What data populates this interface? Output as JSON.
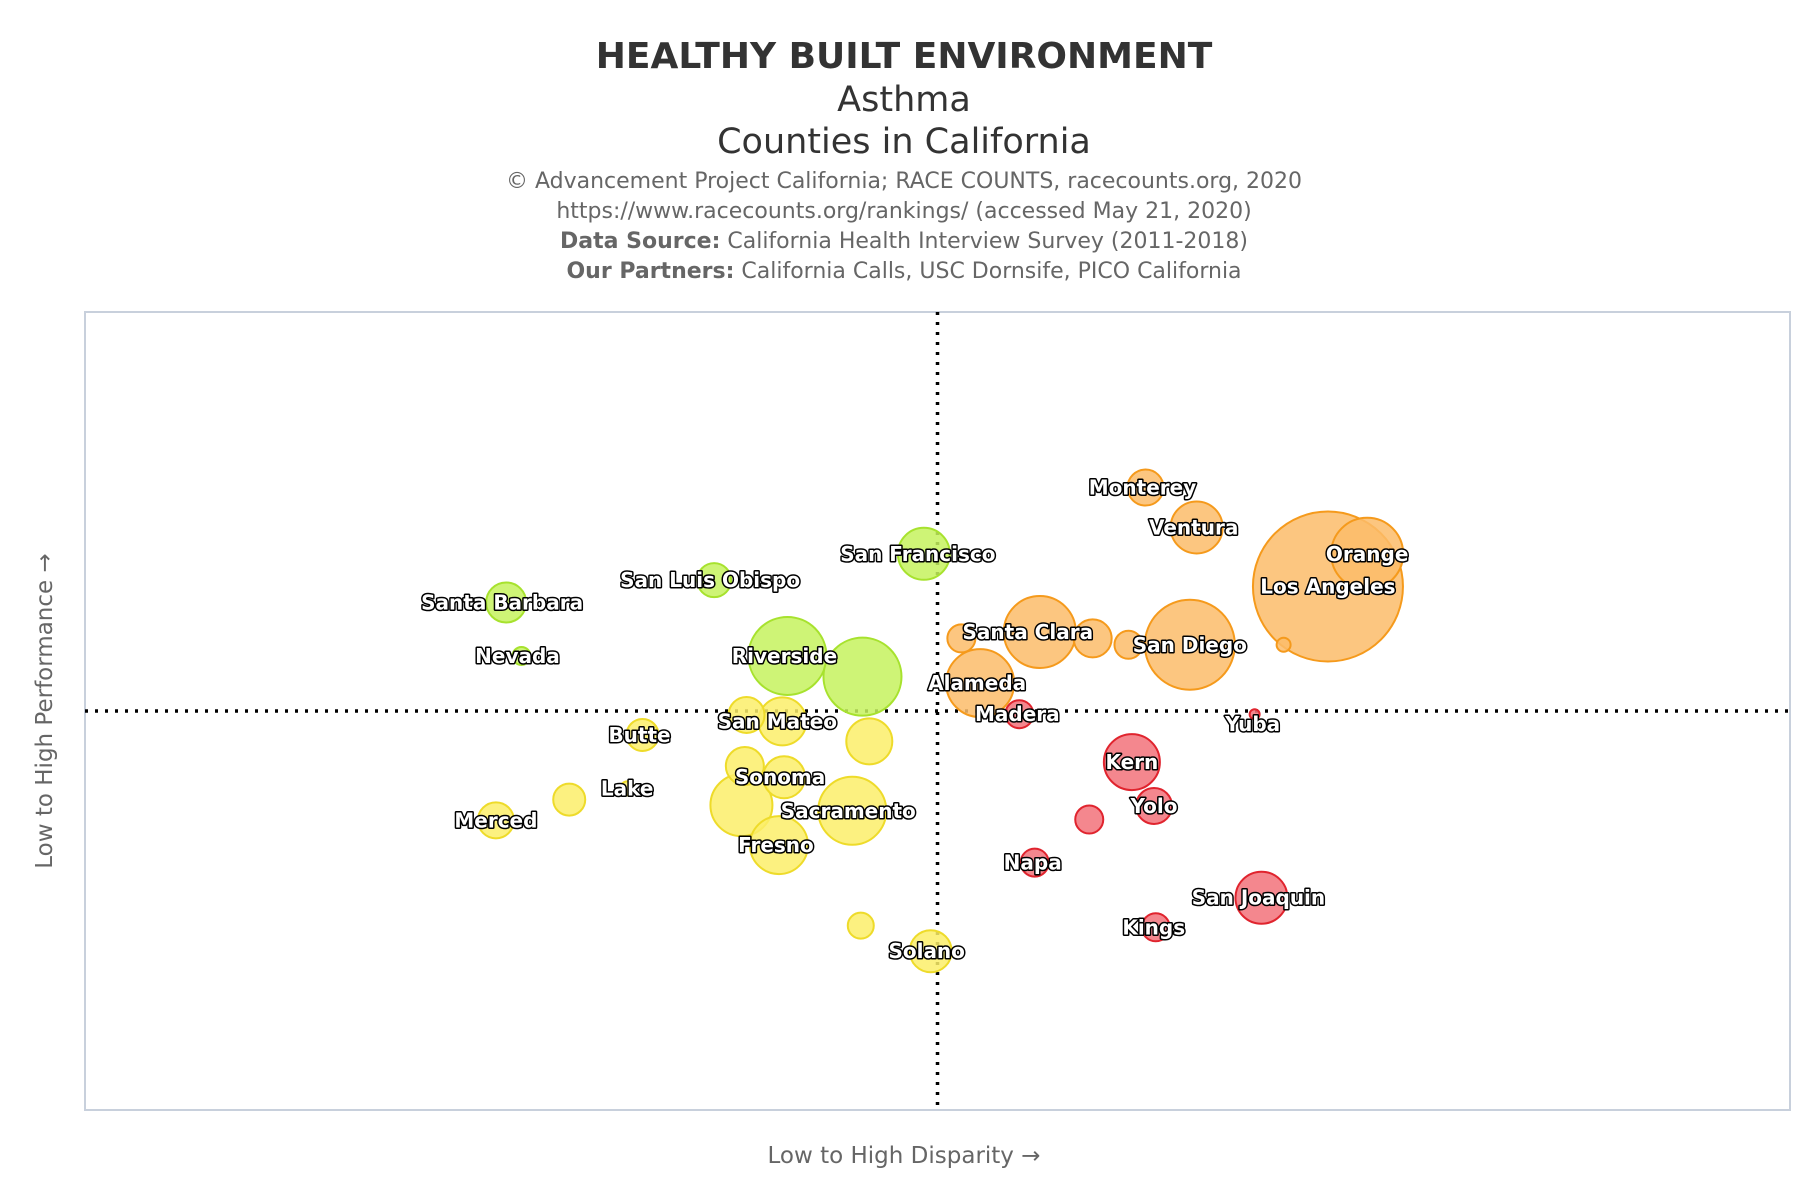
{
  "titles": {
    "main": "HEALTHY BUILT ENVIRONMENT",
    "sub1": "Asthma",
    "sub2": "Counties in California"
  },
  "credits": {
    "line1": "© Advancement Project California; RACE COUNTS, racecounts.org, 2020",
    "line2": "https://www.racecounts.org/rankings/ (accessed May 21, 2020)",
    "line3_bold": "Data Source:",
    "line3_text": " California Health Interview Survey (2011-2018)",
    "line4_bold": "Our Partners:",
    "line4_text": " California Calls, USC Dornsife, PICO California"
  },
  "colors": {
    "green_fill": "#c6f25e",
    "green_stroke": "#a7e22e",
    "orange_fill": "#fbbc6a",
    "orange_stroke": "#f59a1c",
    "yellow_fill": "#fbee6a",
    "yellow_stroke": "#eedb2a",
    "red_fill": "#f2727a",
    "red_stroke": "#e0242e",
    "plot_border": "#c8d0dc",
    "quadrant_line": "#000000"
  },
  "chart_data": {
    "type": "scatter",
    "xlabel": "Low to High Disparity →",
    "ylabel": "Low to High Performance →",
    "xlim": [
      0,
      100
    ],
    "ylim": [
      0,
      100
    ],
    "grid": false,
    "quadrant_lines": {
      "x": 50,
      "y": 50
    },
    "points": [
      {
        "name": "Monterey",
        "x": 62.2,
        "y": 78.0,
        "r": 18,
        "group": "orange",
        "label_dx": -3,
        "label_dy": 0
      },
      {
        "name": "Ventura",
        "x": 65.2,
        "y": 73.0,
        "r": 26,
        "group": "orange",
        "label_dx": -3,
        "label_dy": 0
      },
      {
        "name": "Orange",
        "x": 75.2,
        "y": 69.7,
        "r": 36,
        "group": "orange",
        "label_dx": 0,
        "label_dy": 0
      },
      {
        "name": "Los Angeles",
        "x": 72.9,
        "y": 65.6,
        "r": 75,
        "group": "orange",
        "label_dx": 0,
        "label_dy": 0
      },
      {
        "name": "",
        "x": 70.3,
        "y": 58.3,
        "r": 7,
        "group": "orange",
        "label_dx": 0,
        "label_dy": 0
      },
      {
        "name": "San Diego",
        "x": 64.8,
        "y": 58.3,
        "r": 45,
        "group": "orange",
        "label_dx": 0,
        "label_dy": 0
      },
      {
        "name": "",
        "x": 61.2,
        "y": 58.3,
        "r": 14,
        "group": "orange",
        "label_dx": 0,
        "label_dy": 0
      },
      {
        "name": "",
        "x": 59.1,
        "y": 59.1,
        "r": 19,
        "group": "orange",
        "label_dx": 0,
        "label_dy": 0
      },
      {
        "name": "Santa Clara",
        "x": 56.0,
        "y": 59.9,
        "r": 36,
        "group": "orange",
        "label_dx": -12,
        "label_dy": 0
      },
      {
        "name": "",
        "x": 51.4,
        "y": 59.1,
        "r": 14,
        "group": "orange",
        "label_dx": 0,
        "label_dy": 0
      },
      {
        "name": "Alameda",
        "x": 52.5,
        "y": 53.5,
        "r": 34,
        "group": "orange",
        "label_dx": -3,
        "label_dy": 0
      },
      {
        "name": "San Francisco",
        "x": 49.2,
        "y": 69.7,
        "r": 26,
        "group": "green",
        "label_dx": -6,
        "label_dy": 0
      },
      {
        "name": "San Luis Obispo",
        "x": 36.9,
        "y": 66.4,
        "r": 17,
        "group": "green",
        "label_dx": -4,
        "label_dy": 0
      },
      {
        "name": "Santa Barbara",
        "x": 24.7,
        "y": 63.6,
        "r": 20,
        "group": "green",
        "label_dx": -4,
        "label_dy": 0
      },
      {
        "name": "Nevada",
        "x": 25.6,
        "y": 56.9,
        "r": 9,
        "group": "green",
        "label_dx": -4,
        "label_dy": 0
      },
      {
        "name": "Riverside",
        "x": 41.2,
        "y": 56.9,
        "r": 39,
        "group": "green",
        "label_dx": -3,
        "label_dy": 0
      },
      {
        "name": "",
        "x": 45.6,
        "y": 54.3,
        "r": 39,
        "group": "green",
        "label_dx": 0,
        "label_dy": 0
      },
      {
        "name": "Butte",
        "x": 32.7,
        "y": 47.0,
        "r": 16,
        "group": "yellow",
        "label_dx": -3,
        "label_dy": 0
      },
      {
        "name": "",
        "x": 38.8,
        "y": 49.5,
        "r": 18,
        "group": "yellow",
        "label_dx": 0,
        "label_dy": 0
      },
      {
        "name": "San Mateo",
        "x": 40.9,
        "y": 48.7,
        "r": 24,
        "group": "yellow",
        "label_dx": -5,
        "label_dy": 0
      },
      {
        "name": "",
        "x": 46.0,
        "y": 46.2,
        "r": 23,
        "group": "yellow",
        "label_dx": 0,
        "label_dy": 0
      },
      {
        "name": "",
        "x": 38.7,
        "y": 43.1,
        "r": 19,
        "group": "yellow",
        "label_dx": 0,
        "label_dy": 0
      },
      {
        "name": "Sonoma",
        "x": 41.0,
        "y": 41.7,
        "r": 21,
        "group": "yellow",
        "label_dx": -4,
        "label_dy": 0
      },
      {
        "name": "Lake",
        "x": 31.8,
        "y": 40.3,
        "r": 7,
        "group": "yellow",
        "label_dx": 0,
        "label_dy": 0
      },
      {
        "name": "",
        "x": 28.4,
        "y": 38.9,
        "r": 16,
        "group": "yellow",
        "label_dx": 0,
        "label_dy": 0
      },
      {
        "name": "Merced",
        "x": 24.1,
        "y": 36.3,
        "r": 18,
        "group": "yellow",
        "label_dx": 0,
        "label_dy": 0
      },
      {
        "name": "",
        "x": 38.5,
        "y": 38.2,
        "r": 31,
        "group": "yellow",
        "label_dx": 0,
        "label_dy": 0
      },
      {
        "name": "Sacramento",
        "x": 45.0,
        "y": 37.5,
        "r": 34,
        "group": "yellow",
        "label_dx": -4,
        "label_dy": 0
      },
      {
        "name": "Fresno",
        "x": 40.7,
        "y": 33.2,
        "r": 29,
        "group": "yellow",
        "label_dx": -3,
        "label_dy": 0
      },
      {
        "name": "",
        "x": 45.5,
        "y": 23.1,
        "r": 13,
        "group": "yellow",
        "label_dx": 0,
        "label_dy": 0
      },
      {
        "name": "Solano",
        "x": 49.6,
        "y": 19.9,
        "r": 21,
        "group": "yellow",
        "label_dx": -4,
        "label_dy": 0
      },
      {
        "name": "Madera",
        "x": 54.8,
        "y": 49.6,
        "r": 14,
        "group": "red",
        "label_dx": -2,
        "label_dy": 0
      },
      {
        "name": "Yuba",
        "x": 68.6,
        "y": 49.6,
        "r": 5,
        "group": "red",
        "label_dx": -2,
        "label_dy": 10
      },
      {
        "name": "Kern",
        "x": 61.4,
        "y": 43.6,
        "r": 28,
        "group": "red",
        "label_dx": 0,
        "label_dy": 0
      },
      {
        "name": "Yolo",
        "x": 62.7,
        "y": 38.1,
        "r": 18,
        "group": "red",
        "label_dx": 0,
        "label_dy": 0
      },
      {
        "name": "",
        "x": 58.9,
        "y": 36.4,
        "r": 14,
        "group": "red",
        "label_dx": 0,
        "label_dy": 0
      },
      {
        "name": "Napa",
        "x": 55.7,
        "y": 31.0,
        "r": 14,
        "group": "red",
        "label_dx": -2,
        "label_dy": 0
      },
      {
        "name": "San Joaquin",
        "x": 69.0,
        "y": 26.6,
        "r": 26,
        "group": "red",
        "label_dx": -3,
        "label_dy": 0
      },
      {
        "name": "Kings",
        "x": 62.8,
        "y": 22.9,
        "r": 14,
        "group": "red",
        "label_dx": -2,
        "label_dy": 0
      }
    ]
  }
}
